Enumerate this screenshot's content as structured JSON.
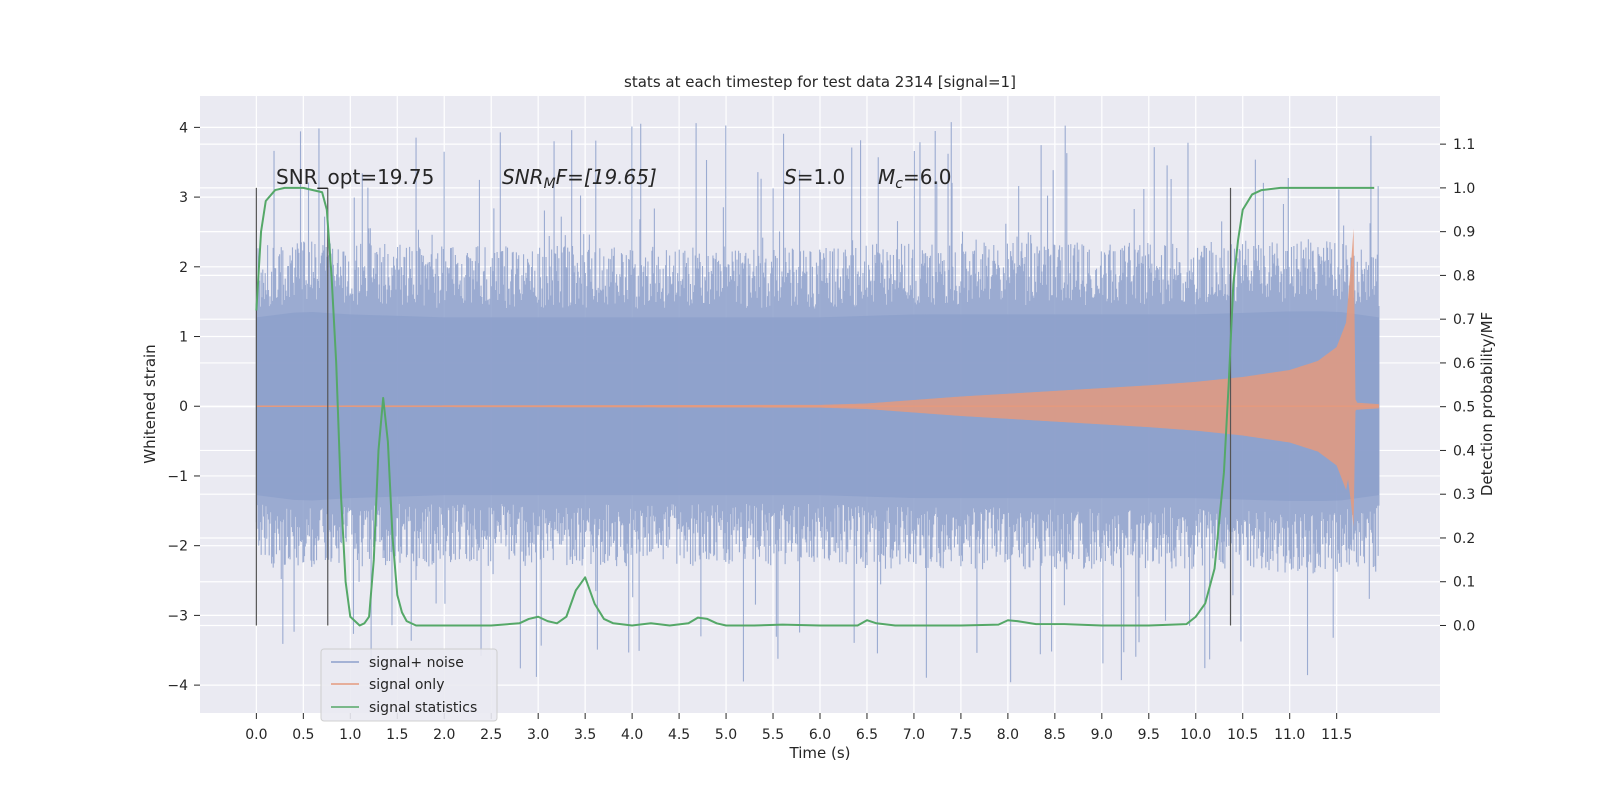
{
  "chart_data": {
    "type": "line",
    "title": "stats at each timestep for test data 2314 [signal=1]",
    "xlabel": "Time (s)",
    "ylabel": "Whitened strain",
    "y2label": "Detection probability/MF",
    "xlim": [
      -0.6,
      12.6
    ],
    "ylim": [
      -4.4,
      4.45
    ],
    "y2lim": [
      -0.2,
      1.21
    ],
    "xticks": [
      0.0,
      0.5,
      1.0,
      1.5,
      2.0,
      2.5,
      3.0,
      3.5,
      4.0,
      4.5,
      5.0,
      5.5,
      6.0,
      6.5,
      7.0,
      7.5,
      8.0,
      8.5,
      9.0,
      9.5,
      10.0,
      10.5,
      11.0,
      11.5
    ],
    "xtick_labels": [
      "0.0",
      "0.5",
      "1.0",
      "1.5",
      "2.0",
      "2.5",
      "3.0",
      "3.5",
      "4.0",
      "4.5",
      "5.0",
      "5.5",
      "6.0",
      "6.5",
      "7.0",
      "7.5",
      "8.0",
      "8.5",
      "9.0",
      "9.5",
      "10.0",
      "10.5",
      "11.0",
      "11.5"
    ],
    "yticks": [
      -4,
      -3,
      -2,
      -1,
      0,
      1,
      2,
      3,
      4
    ],
    "ytick_labels": [
      "−4",
      "−3",
      "−2",
      "−1",
      "0",
      "1",
      "2",
      "3",
      "4"
    ],
    "y2ticks": [
      0.0,
      0.1,
      0.2,
      0.3,
      0.4,
      0.5,
      0.6,
      0.7,
      0.8,
      0.9,
      1.0,
      1.1
    ],
    "y2tick_labels": [
      "0.0",
      "0.1",
      "0.2",
      "0.3",
      "0.4",
      "0.5",
      "0.6",
      "0.7",
      "0.8",
      "0.9",
      "1.0",
      "1.1"
    ],
    "grid": true,
    "legend_position": "bottom-left",
    "annotations": {
      "snr_opt": "SNR_opt=19.75",
      "snr_mf_main": "SNR",
      "snr_mf_sub": "M",
      "snr_mf_rest": "F=[19.65]",
      "s_main": "S",
      "s_rest": "=1.0",
      "mc_main": "M",
      "mc_sub": "c",
      "mc_rest": "=6.0"
    },
    "vertical_markers": [
      0.0,
      0.76,
      10.37
    ],
    "series": [
      {
        "name": "signal+ noise",
        "color": "#8da0cb",
        "x_range": [
          0.0,
          11.95
        ],
        "envelope_upper": [
          [
            0.0,
            1.5
          ],
          [
            0.5,
            1.6
          ],
          [
            1.0,
            1.55
          ],
          [
            2.0,
            1.5
          ],
          [
            3.0,
            1.5
          ],
          [
            4.0,
            1.5
          ],
          [
            5.0,
            1.5
          ],
          [
            6.0,
            1.5
          ],
          [
            7.0,
            1.55
          ],
          [
            8.0,
            1.55
          ],
          [
            9.0,
            1.55
          ],
          [
            10.0,
            1.55
          ],
          [
            11.0,
            1.6
          ],
          [
            11.5,
            1.6
          ],
          [
            11.95,
            1.5
          ]
        ],
        "envelope_lower": [
          [
            0.0,
            -1.5
          ],
          [
            0.5,
            -1.55
          ],
          [
            1.0,
            -1.5
          ],
          [
            2.0,
            -1.5
          ],
          [
            3.0,
            -1.5
          ],
          [
            4.0,
            -1.5
          ],
          [
            5.0,
            -1.5
          ],
          [
            6.0,
            -1.5
          ],
          [
            7.0,
            -1.55
          ],
          [
            8.0,
            -1.55
          ],
          [
            9.0,
            -1.55
          ],
          [
            10.0,
            -1.55
          ],
          [
            11.0,
            -1.6
          ],
          [
            11.5,
            -1.6
          ],
          [
            11.95,
            -1.5
          ]
        ],
        "spike_max": 4.1,
        "spike_min": -4.0
      },
      {
        "name": "signal only",
        "color": "#e49a7e",
        "envelope": [
          [
            0.0,
            0.01
          ],
          [
            6.0,
            0.02
          ],
          [
            6.5,
            0.04
          ],
          [
            7.0,
            0.09
          ],
          [
            7.5,
            0.14
          ],
          [
            8.0,
            0.18
          ],
          [
            8.5,
            0.22
          ],
          [
            9.0,
            0.26
          ],
          [
            9.5,
            0.3
          ],
          [
            10.0,
            0.35
          ],
          [
            10.5,
            0.42
          ],
          [
            11.0,
            0.52
          ],
          [
            11.3,
            0.65
          ],
          [
            11.5,
            0.85
          ],
          [
            11.6,
            1.2
          ],
          [
            11.65,
            2.0
          ],
          [
            11.68,
            2.55
          ],
          [
            11.7,
            0.1
          ],
          [
            11.72,
            0.05
          ],
          [
            11.95,
            0.03
          ]
        ]
      },
      {
        "name": "signal statistics",
        "color": "#55a868",
        "x": [
          0.0,
          0.05,
          0.1,
          0.2,
          0.3,
          0.5,
          0.7,
          0.75,
          0.8,
          0.85,
          0.9,
          0.95,
          1.0,
          1.05,
          1.1,
          1.15,
          1.2,
          1.25,
          1.3,
          1.35,
          1.4,
          1.45,
          1.5,
          1.55,
          1.6,
          1.7,
          1.8,
          2.0,
          2.5,
          2.8,
          2.9,
          3.0,
          3.1,
          3.2,
          3.3,
          3.4,
          3.5,
          3.6,
          3.7,
          3.8,
          4.0,
          4.2,
          4.4,
          4.6,
          4.7,
          4.8,
          4.9,
          5.0,
          5.3,
          5.6,
          6.0,
          6.4,
          6.5,
          6.6,
          6.8,
          7.5,
          7.9,
          8.0,
          8.1,
          8.3,
          8.6,
          9.0,
          9.5,
          9.9,
          10.0,
          10.1,
          10.2,
          10.3,
          10.35,
          10.4,
          10.45,
          10.5,
          10.6,
          10.7,
          10.9,
          11.2,
          11.5,
          11.9
        ],
        "values": [
          0.72,
          0.9,
          0.97,
          0.995,
          1.0,
          1.0,
          0.99,
          0.95,
          0.8,
          0.6,
          0.3,
          0.1,
          0.02,
          0.01,
          0.0,
          0.005,
          0.02,
          0.15,
          0.4,
          0.52,
          0.42,
          0.2,
          0.07,
          0.03,
          0.01,
          0.0,
          0.0,
          0.0,
          0.0,
          0.005,
          0.015,
          0.02,
          0.01,
          0.005,
          0.02,
          0.08,
          0.11,
          0.05,
          0.015,
          0.005,
          0.0,
          0.005,
          0.0,
          0.005,
          0.018,
          0.015,
          0.005,
          0.0,
          0.0,
          0.002,
          0.0,
          0.0,
          0.012,
          0.005,
          0.0,
          0.0,
          0.002,
          0.012,
          0.01,
          0.003,
          0.003,
          0.0,
          0.0,
          0.003,
          0.02,
          0.05,
          0.13,
          0.35,
          0.55,
          0.78,
          0.88,
          0.95,
          0.985,
          0.995,
          1.0,
          1.0,
          1.0,
          1.0
        ]
      }
    ]
  }
}
